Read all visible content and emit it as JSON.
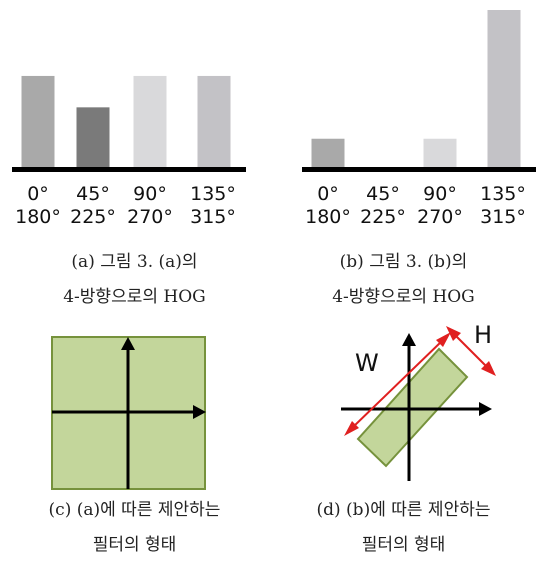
{
  "chart_data": [
    {
      "type": "bar",
      "categories": [
        "0° 180°",
        "45° 225°",
        "90° 270°",
        "135° 315°"
      ],
      "series": [
        {
          "values": [
            0.58,
            0.38,
            0.58,
            0.58
          ]
        }
      ],
      "tick_labels": [
        [
          "0°",
          "180°"
        ],
        [
          "45°",
          "225°"
        ],
        [
          "90°",
          "270°"
        ],
        [
          "135°",
          "315°"
        ]
      ],
      "bar_colors": [
        "#a9a9a9",
        "#7a7a7a",
        "#d9d9db",
        "#c3c2c6"
      ],
      "caption": [
        "(a) 그림 3. (a)의",
        "4-방향으로의 HOG"
      ]
    },
    {
      "type": "bar",
      "categories": [
        "0° 180°",
        "45° 225°",
        "90° 270°",
        "135° 315°"
      ],
      "series": [
        {
          "values": [
            0.18,
            0.0,
            0.18,
            1.0
          ]
        }
      ],
      "tick_labels": [
        [
          "0°",
          "180°"
        ],
        [
          "45°",
          "225°"
        ],
        [
          "90°",
          "270°"
        ],
        [
          "135°",
          "315°"
        ]
      ],
      "bar_colors": [
        "#a9a9a9",
        "#7a7a7a",
        "#d9d9db",
        "#c3c2c6"
      ],
      "caption": [
        "(b) 그림 3. (b)의",
        "4-방향으로의 HOG"
      ]
    }
  ],
  "filters": {
    "c": {
      "caption": [
        "(c) (a)에 따른 제안하는",
        "필터의 형태"
      ]
    },
    "d": {
      "caption": [
        "(d) (b)에 따른 제안하는",
        "필터의 형태"
      ],
      "width_label": "W",
      "height_label": "H"
    }
  },
  "colors": {
    "filter_fill": "#c3d69b",
    "filter_stroke": "#76923c",
    "arrow_red": "#e02020",
    "axis": "#000000"
  }
}
